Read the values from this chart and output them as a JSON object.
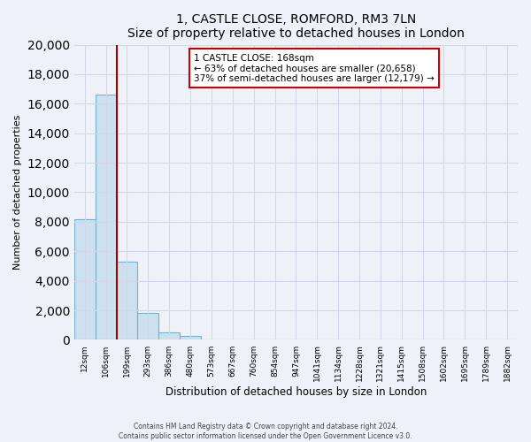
{
  "title": "1, CASTLE CLOSE, ROMFORD, RM3 7LN",
  "subtitle": "Size of property relative to detached houses in London",
  "xlabel": "Distribution of detached houses by size in London",
  "ylabel": "Number of detached properties",
  "bar_labels": [
    "12sqm",
    "106sqm",
    "199sqm",
    "293sqm",
    "386sqm",
    "480sqm",
    "573sqm",
    "667sqm",
    "760sqm",
    "854sqm",
    "947sqm",
    "1041sqm",
    "1134sqm",
    "1228sqm",
    "1321sqm",
    "1415sqm",
    "1508sqm",
    "1602sqm",
    "1695sqm",
    "1789sqm",
    "1882sqm"
  ],
  "bar_values": [
    8200,
    16600,
    5300,
    1850,
    480,
    280,
    0,
    0,
    0,
    0,
    0,
    0,
    0,
    0,
    0,
    0,
    0,
    0,
    0,
    0,
    0
  ],
  "bar_color": "#cce0f0",
  "bar_edge_color": "#7aafc8",
  "vline_color": "#a00000",
  "annotation_title": "1 CASTLE CLOSE: 168sqm",
  "annotation_line1": "← 63% of detached houses are smaller (20,658)",
  "annotation_line2": "37% of semi-detached houses are larger (12,179) →",
  "annotation_box_color": "#ffffff",
  "annotation_box_edge": "#cc0000",
  "ylim": [
    0,
    20000
  ],
  "yticks": [
    0,
    2000,
    4000,
    6000,
    8000,
    10000,
    12000,
    14000,
    16000,
    18000,
    20000
  ],
  "footer_line1": "Contains HM Land Registry data © Crown copyright and database right 2024.",
  "footer_line2": "Contains public sector information licensed under the Open Government Licence v3.0.",
  "background_color": "#eef2f8",
  "plot_bg_color": "#eef2f8",
  "grid_color": "#d0d8e8"
}
